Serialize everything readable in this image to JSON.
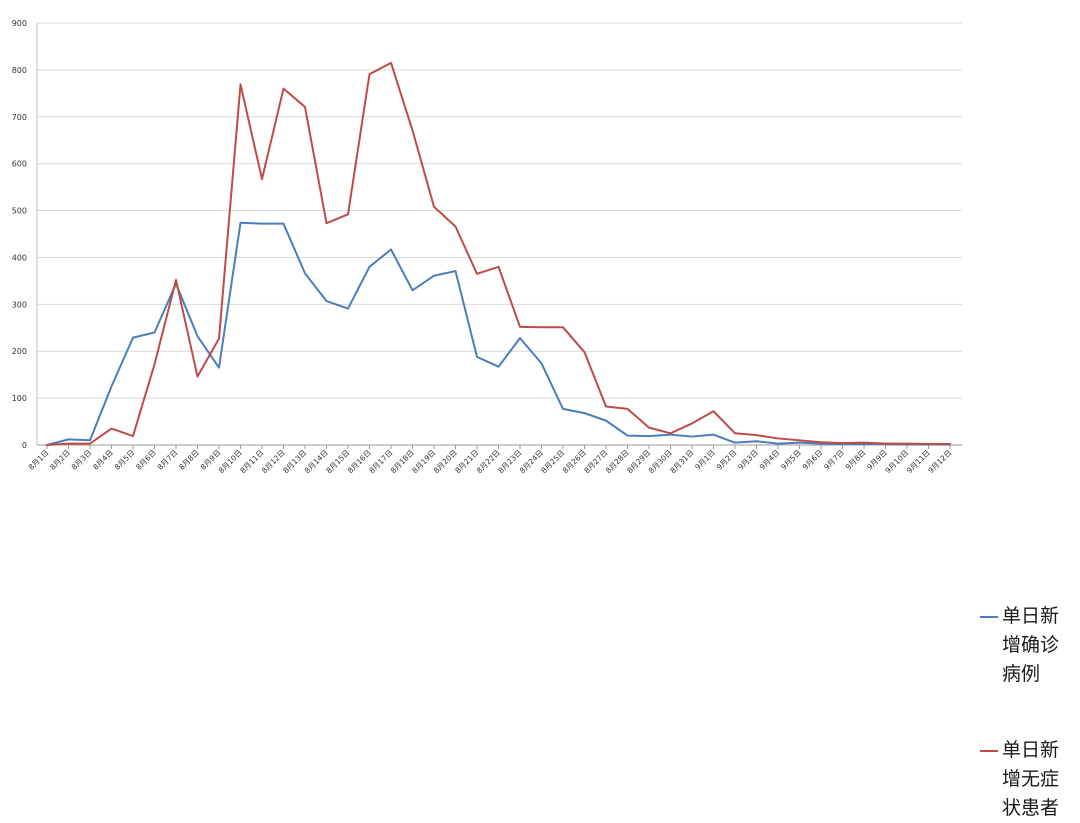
{
  "chart_data": {
    "type": "line",
    "title": "",
    "xlabel": "",
    "ylabel": "",
    "ylim": [
      0,
      900
    ],
    "yticks": [
      0,
      100,
      200,
      300,
      400,
      500,
      600,
      700,
      800,
      900
    ],
    "grid": true,
    "legend_position": "right",
    "categories": [
      "8月1日",
      "8月2日",
      "8月3日",
      "8月4日",
      "8月5日",
      "8月6日",
      "8月7日",
      "8月8日",
      "8月9日",
      "8月10日",
      "8月11日",
      "8月12日",
      "8月13日",
      "8月14日",
      "8月15日",
      "8月16日",
      "8月17日",
      "8月18日",
      "8月19日",
      "8月20日",
      "8月21日",
      "8月22日",
      "8月23日",
      "8月24日",
      "8月25日",
      "8月26日",
      "8月27日",
      "8月28日",
      "8月29日",
      "8月30日",
      "8月31日",
      "9月1日",
      "9月2日",
      "9月3日",
      "9月4日",
      "9月5日",
      "9月6日",
      "9月7日",
      "9月8日",
      "9月9日",
      "9月10日",
      "9月11日",
      "9月12日"
    ],
    "series": [
      {
        "name": "单日新增确诊病例",
        "color": "#4a7ebb",
        "values": [
          0,
          12,
          10,
          125,
          229,
          240,
          344,
          232,
          165,
          474,
          472,
          472,
          366,
          307,
          291,
          380,
          417,
          330,
          361,
          371,
          188,
          167,
          228,
          174,
          77,
          68,
          52,
          20,
          19,
          22,
          18,
          22,
          5,
          8,
          3,
          5,
          3,
          2,
          2,
          2,
          1,
          1,
          1
        ]
      },
      {
        "name": "单日新增无症状患者",
        "color": "#be4b48",
        "values": [
          0,
          3,
          3,
          35,
          19,
          172,
          352,
          146,
          227,
          769,
          567,
          760,
          721,
          473,
          492,
          791,
          815,
          671,
          508,
          466,
          365,
          380,
          252,
          251,
          251,
          198,
          82,
          77,
          37,
          25,
          46,
          72,
          25,
          21,
          14,
          10,
          6,
          4,
          5,
          3,
          3,
          2,
          2
        ]
      }
    ]
  }
}
